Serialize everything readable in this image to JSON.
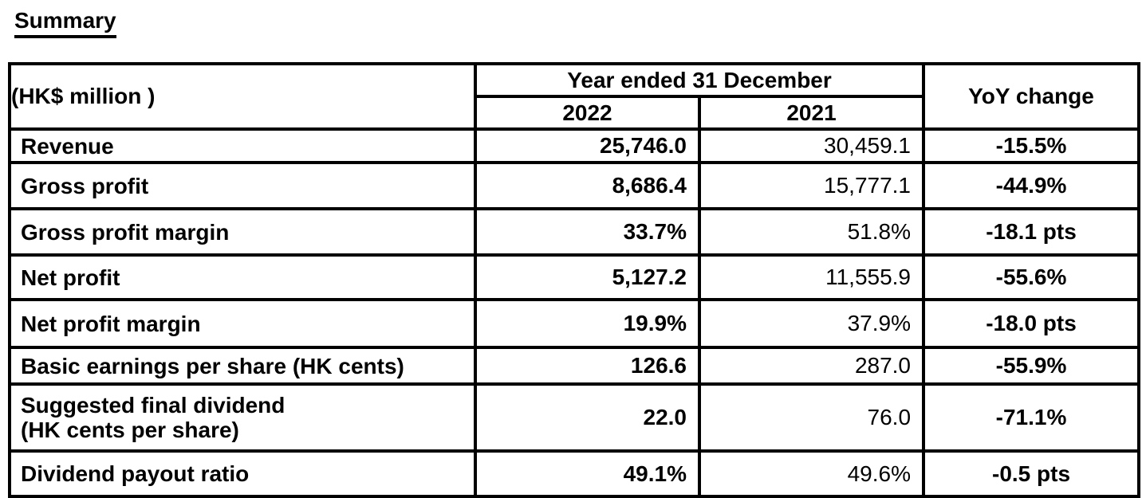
{
  "page": {
    "heading": "Summary"
  },
  "colors": {
    "text": "#000000",
    "background": "#ffffff",
    "border": "#000000"
  },
  "table": {
    "unit_header": "(HK$ million )",
    "year_group_header": "Year ended 31 December",
    "col_2022": "2022",
    "col_2021": "2021",
    "yoy_header": "YoY change",
    "rows": [
      {
        "label": "Revenue",
        "v2022": "25,746.0",
        "v2021": "30,459.1",
        "yoy": "-15.5%"
      },
      {
        "label": "Gross profit",
        "v2022": "8,686.4",
        "v2021": "15,777.1",
        "yoy": "-44.9%"
      },
      {
        "label": "Gross profit margin",
        "v2022": "33.7%",
        "v2021": "51.8%",
        "yoy": "-18.1 pts"
      },
      {
        "label": "Net profit",
        "v2022": "5,127.2",
        "v2021": "11,555.9",
        "yoy": "-55.6%"
      },
      {
        "label": "Net profit margin",
        "v2022": "19.9%",
        "v2021": "37.9%",
        "yoy": "-18.0 pts"
      },
      {
        "label": "Basic earnings per share (HK cents)",
        "v2022": "126.6",
        "v2021": "287.0",
        "yoy": "-55.9%"
      },
      {
        "label": "Suggested final dividend\n(HK cents per share)",
        "v2022": "22.0",
        "v2021": "76.0",
        "yoy": "-71.1%"
      },
      {
        "label": "Dividend payout ratio",
        "v2022": "49.1%",
        "v2021": "49.6%",
        "yoy": "-0.5 pts"
      }
    ]
  }
}
